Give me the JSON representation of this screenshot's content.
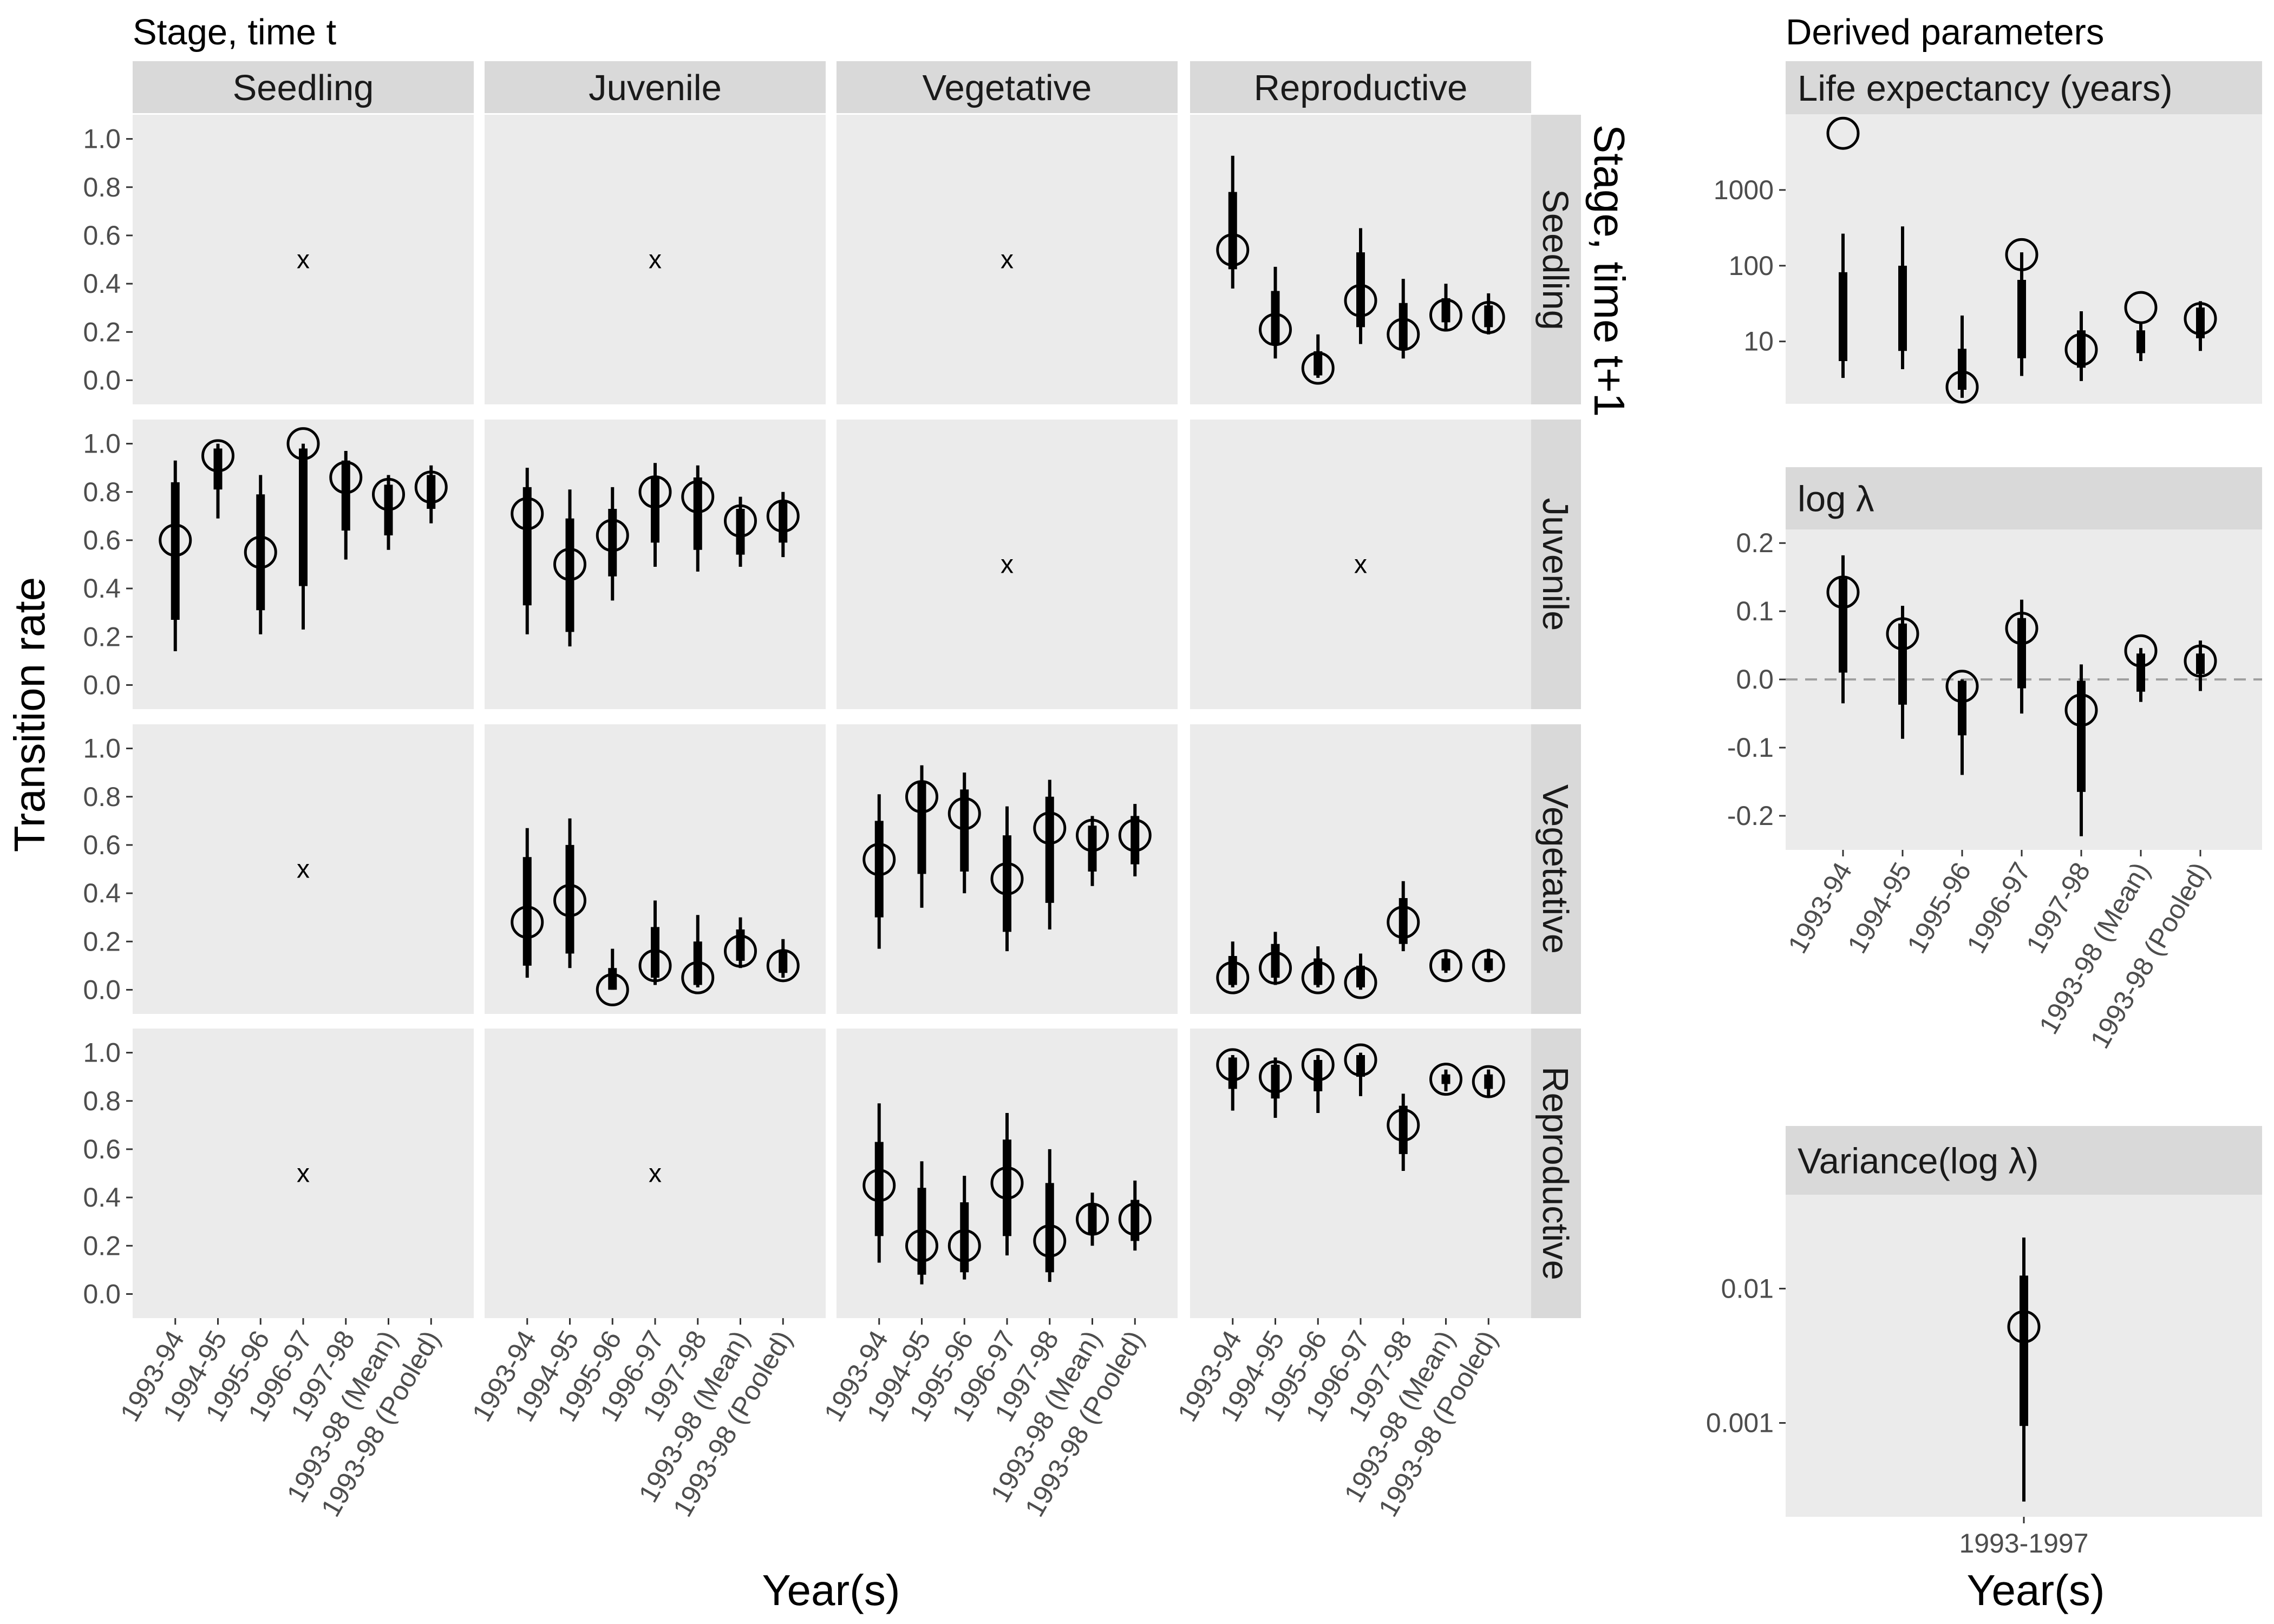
{
  "headings": {
    "left_title": "Stage, time t",
    "right_title": "Derived parameters",
    "row_axis_title": "Stage, time t+1",
    "y_axis_title": "Transition rate",
    "x_axis_title_left": "Year(s)",
    "x_axis_title_right": "Year(s)"
  },
  "column_strips": [
    "Seedling",
    "Juvenile",
    "Vegetative",
    "Reproductive"
  ],
  "row_strips": [
    "Seedling",
    "Juvenile",
    "Vegetative",
    "Reproductive"
  ],
  "missing_marker": "x",
  "chart_data": [
    {
      "type": "scatter",
      "title": "Stage, time t",
      "ylabel": "Transition rate",
      "xlabel": "Year(s)",
      "ylim": [
        -0.1,
        1.1
      ],
      "y_ticks": [
        "0.0",
        "0.2",
        "0.4",
        "0.6",
        "0.8",
        "1.0"
      ],
      "y_tick_values": [
        0,
        0.2,
        0.4,
        0.6,
        0.8,
        1.0
      ],
      "categories": [
        "1993-94",
        "1994-95",
        "1995-96",
        "1996-97",
        "1997-98",
        "1993-98 (Mean)",
        "1993-98 (Pooled)"
      ],
      "grid": false,
      "facets": {
        "columns": "Stage, time t",
        "rows": "Stage, time t+1",
        "panels": [
          {
            "row": "Seedling",
            "col": "Seedling",
            "missing": true
          },
          {
            "row": "Seedling",
            "col": "Juvenile",
            "missing": true
          },
          {
            "row": "Seedling",
            "col": "Vegetative",
            "missing": true
          },
          {
            "row": "Seedling",
            "col": "Reproductive",
            "missing": false,
            "point": [
              0.54,
              0.21,
              0.05,
              0.33,
              0.19,
              0.27,
              0.26
            ],
            "lo95": [
              0.38,
              0.09,
              0.01,
              0.15,
              0.09,
              0.21,
              0.19
            ],
            "hi95": [
              0.93,
              0.47,
              0.19,
              0.63,
              0.42,
              0.4,
              0.36
            ],
            "lo50": [
              0.46,
              0.15,
              0.02,
              0.22,
              0.13,
              0.24,
              0.22
            ],
            "hi50": [
              0.78,
              0.37,
              0.12,
              0.53,
              0.32,
              0.34,
              0.31
            ]
          },
          {
            "row": "Juvenile",
            "col": "Seedling",
            "missing": false,
            "point": [
              0.6,
              0.95,
              0.55,
              1.0,
              0.86,
              0.79,
              0.82
            ],
            "lo95": [
              0.14,
              0.69,
              0.21,
              0.23,
              0.52,
              0.56,
              0.67
            ],
            "hi95": [
              0.93,
              1.0,
              0.87,
              1.0,
              0.97,
              0.87,
              0.91
            ],
            "lo50": [
              0.27,
              0.81,
              0.31,
              0.41,
              0.64,
              0.62,
              0.73
            ],
            "hi50": [
              0.84,
              0.98,
              0.79,
              0.98,
              0.93,
              0.83,
              0.87
            ]
          },
          {
            "row": "Juvenile",
            "col": "Juvenile",
            "missing": false,
            "point": [
              0.71,
              0.5,
              0.62,
              0.8,
              0.78,
              0.68,
              0.7
            ],
            "lo95": [
              0.21,
              0.16,
              0.35,
              0.49,
              0.47,
              0.49,
              0.53
            ],
            "hi95": [
              0.9,
              0.81,
              0.82,
              0.92,
              0.91,
              0.78,
              0.8
            ],
            "lo50": [
              0.33,
              0.22,
              0.45,
              0.59,
              0.56,
              0.54,
              0.59
            ],
            "hi50": [
              0.82,
              0.69,
              0.73,
              0.86,
              0.86,
              0.73,
              0.76
            ]
          },
          {
            "row": "Juvenile",
            "col": "Vegetative",
            "missing": true
          },
          {
            "row": "Juvenile",
            "col": "Reproductive",
            "missing": true
          },
          {
            "row": "Vegetative",
            "col": "Seedling",
            "missing": true
          },
          {
            "row": "Vegetative",
            "col": "Juvenile",
            "missing": false,
            "point": [
              0.28,
              0.37,
              0.0,
              0.1,
              0.05,
              0.16,
              0.1
            ],
            "lo95": [
              0.05,
              0.09,
              0.0,
              0.02,
              0.01,
              0.09,
              0.05
            ],
            "hi95": [
              0.67,
              0.71,
              0.17,
              0.37,
              0.31,
              0.3,
              0.21
            ],
            "lo50": [
              0.1,
              0.15,
              0.0,
              0.05,
              0.02,
              0.12,
              0.07
            ],
            "hi50": [
              0.55,
              0.6,
              0.09,
              0.26,
              0.2,
              0.25,
              0.16
            ]
          },
          {
            "row": "Vegetative",
            "col": "Vegetative",
            "missing": false,
            "point": [
              0.54,
              0.8,
              0.73,
              0.46,
              0.67,
              0.64,
              0.64
            ],
            "lo95": [
              0.17,
              0.34,
              0.4,
              0.16,
              0.25,
              0.43,
              0.47
            ],
            "hi95": [
              0.81,
              0.93,
              0.9,
              0.76,
              0.87,
              0.72,
              0.77
            ],
            "lo50": [
              0.3,
              0.48,
              0.49,
              0.24,
              0.36,
              0.49,
              0.52
            ],
            "hi50": [
              0.7,
              0.86,
              0.83,
              0.64,
              0.8,
              0.68,
              0.72
            ]
          },
          {
            "row": "Vegetative",
            "col": "Reproductive",
            "missing": false,
            "point": [
              0.05,
              0.09,
              0.05,
              0.03,
              0.28,
              0.1,
              0.1
            ],
            "lo95": [
              0.01,
              0.02,
              0.01,
              0.0,
              0.16,
              0.07,
              0.07
            ],
            "hi95": [
              0.2,
              0.24,
              0.18,
              0.15,
              0.45,
              0.16,
              0.17
            ],
            "lo50": [
              0.02,
              0.05,
              0.02,
              0.01,
              0.19,
              0.08,
              0.08
            ],
            "hi50": [
              0.14,
              0.19,
              0.13,
              0.1,
              0.38,
              0.13,
              0.13
            ]
          },
          {
            "row": "Reproductive",
            "col": "Seedling",
            "missing": true
          },
          {
            "row": "Reproductive",
            "col": "Juvenile",
            "missing": true
          },
          {
            "row": "Reproductive",
            "col": "Vegetative",
            "missing": false,
            "point": [
              0.45,
              0.2,
              0.2,
              0.46,
              0.22,
              0.31,
              0.31
            ],
            "lo95": [
              0.13,
              0.04,
              0.06,
              0.16,
              0.05,
              0.2,
              0.18
            ],
            "hi95": [
              0.79,
              0.55,
              0.49,
              0.75,
              0.6,
              0.42,
              0.47
            ],
            "lo50": [
              0.24,
              0.08,
              0.09,
              0.24,
              0.09,
              0.25,
              0.22
            ],
            "hi50": [
              0.63,
              0.44,
              0.38,
              0.64,
              0.46,
              0.37,
              0.39
            ]
          },
          {
            "row": "Reproductive",
            "col": "Reproductive",
            "missing": false,
            "point": [
              0.95,
              0.9,
              0.95,
              0.97,
              0.7,
              0.89,
              0.88
            ],
            "lo95": [
              0.76,
              0.73,
              0.75,
              0.82,
              0.51,
              0.84,
              0.82
            ],
            "hi95": [
              0.99,
              0.98,
              0.99,
              1.0,
              0.83,
              0.93,
              0.93
            ],
            "lo50": [
              0.85,
              0.81,
              0.84,
              0.9,
              0.58,
              0.87,
              0.85
            ],
            "hi50": [
              0.98,
              0.95,
              0.97,
              0.99,
              0.78,
              0.91,
              0.91
            ]
          }
        ]
      }
    },
    {
      "type": "scatter",
      "title": "Life expectancy (years)",
      "scale": "log",
      "ylim": [
        1.5,
        10000
      ],
      "y_ticks": [
        "10",
        "100",
        "1000"
      ],
      "y_tick_values": [
        10,
        100,
        1000
      ],
      "categories": [
        "1993-94",
        "1994-95",
        "1995-96",
        "1996-97",
        "1997-98",
        "1993-98 (Mean)",
        "1993-98 (Pooled)"
      ],
      "grid": false,
      "point": [
        5600,
        null,
        2.5,
        140,
        7.8,
        28,
        20
      ],
      "lo95": [
        3.3,
        4.3,
        1.8,
        3.5,
        3.0,
        5.5,
        7.5
      ],
      "hi95": [
        265,
        330,
        22,
        150,
        25,
        17,
        34
      ],
      "lo50": [
        5.5,
        7.5,
        2.3,
        6,
        4.5,
        7,
        11
      ],
      "hi50": [
        82,
        100,
        8,
        65,
        14,
        14,
        28
      ]
    },
    {
      "type": "scatter",
      "title": "log λ",
      "ylim": [
        -0.25,
        0.22
      ],
      "y_ticks": [
        "-0.2",
        "-0.1",
        "0.0",
        "0.1",
        "0.2"
      ],
      "y_tick_values": [
        -0.2,
        -0.1,
        0.0,
        0.1,
        0.2
      ],
      "reference_line": 0,
      "categories": [
        "1993-94",
        "1994-95",
        "1995-96",
        "1996-97",
        "1997-98",
        "1993-98 (Mean)",
        "1993-98 (Pooled)"
      ],
      "grid": false,
      "point": [
        0.128,
        0.067,
        -0.01,
        0.075,
        -0.045,
        0.042,
        0.027
      ],
      "lo95": [
        -0.035,
        -0.087,
        -0.14,
        -0.05,
        -0.23,
        -0.033,
        -0.017
      ],
      "hi95": [
        0.182,
        0.108,
        0.0,
        0.117,
        0.022,
        0.046,
        0.057
      ],
      "lo50": [
        0.01,
        -0.037,
        -0.082,
        -0.013,
        -0.165,
        -0.018,
        0.008
      ],
      "hi50": [
        0.148,
        0.082,
        -0.002,
        0.09,
        -0.002,
        0.038,
        0.038
      ]
    },
    {
      "type": "scatter",
      "title": "Variance(log λ)",
      "xlabel": "Year(s)",
      "scale": "log",
      "ylim": [
        0.0002,
        0.05
      ],
      "y_ticks": [
        "0.001",
        "0.01"
      ],
      "y_tick_values": [
        0.001,
        0.01
      ],
      "categories": [
        "1993-1997"
      ],
      "grid": false,
      "point": [
        0.0052
      ],
      "lo95": [
        0.00026
      ],
      "hi95": [
        0.024
      ],
      "lo50": [
        0.00095
      ],
      "hi50": [
        0.0125
      ]
    }
  ]
}
